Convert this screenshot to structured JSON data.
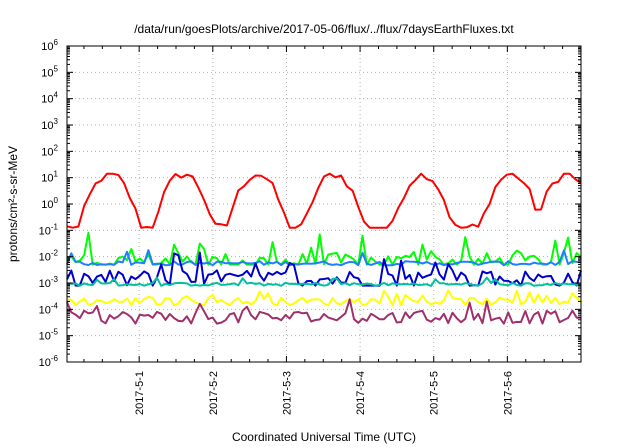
{
  "chart_data": {
    "type": "line",
    "title": "/data/run/goesPlots/archive/2017-05-06/flux/../flux/7daysEarthFluxes.txt",
    "xlabel": "Coordinated Universal Time (UTC)",
    "ylabel": "protons/cm²-s-sr-MeV",
    "yscale": "log",
    "ylim": [
      1e-06,
      1000000.0
    ],
    "xlim": [
      "2017-04-30",
      "2017-05-06T23:59"
    ],
    "grid": true,
    "y_ticks": [
      {
        "base": "10",
        "exp": "-6"
      },
      {
        "base": "10",
        "exp": "-5"
      },
      {
        "base": "10",
        "exp": "-4"
      },
      {
        "base": "10",
        "exp": "-3"
      },
      {
        "base": "10",
        "exp": "-2"
      },
      {
        "base": "10",
        "exp": "-1"
      },
      {
        "base": "10",
        "exp": "0"
      },
      {
        "base": "10",
        "exp": "1"
      },
      {
        "base": "10",
        "exp": "2"
      },
      {
        "base": "10",
        "exp": "3"
      },
      {
        "base": "10",
        "exp": "4"
      },
      {
        "base": "10",
        "exp": "5"
      },
      {
        "base": "10",
        "exp": "6"
      }
    ],
    "x_ticks": [
      {
        "label": "2017-5-1",
        "day": 1
      },
      {
        "label": "2017-5-2",
        "day": 2
      },
      {
        "label": "2017-5-3",
        "day": 3
      },
      {
        "label": "2017-5-4",
        "day": 4
      },
      {
        "label": "2017-5-5",
        "day": 5
      },
      {
        "label": "2017-5-6",
        "day": 6
      }
    ],
    "series": [
      {
        "color": "#ff0000",
        "style": "diurnal",
        "peaks": [
          0.6,
          1.6,
          2.6,
          3.65,
          4.85,
          6.05,
          6.8
        ],
        "lo": -0.9,
        "hi": 1.15
      },
      {
        "color": "#00ff00",
        "style": "noisy",
        "base": -2.2,
        "amp": 0.35,
        "spikes": 1.0,
        "lo": -2.3,
        "hi": -0.9
      },
      {
        "color": "#1e7fff",
        "style": "flat",
        "base": -2.25,
        "amp": 0.08,
        "lo": -2.4,
        "hi": -1.5
      },
      {
        "color": "#0000cc",
        "style": "noisy",
        "base": -2.85,
        "amp": 0.35,
        "spikes": 0.8,
        "lo": -3.1,
        "hi": -1.8
      },
      {
        "color": "#00c0a0",
        "style": "flat",
        "base": -3.05,
        "amp": 0.06,
        "lo": -3.15,
        "hi": -2.7
      },
      {
        "color": "#ffff00",
        "style": "noisy",
        "base": -3.7,
        "amp": 0.15,
        "spikes": 0.35,
        "lo": -3.85,
        "hi": -3.2
      },
      {
        "color": "#a0306a",
        "style": "noisy",
        "base": -4.3,
        "amp": 0.25,
        "spikes": 0.5,
        "lo": -4.6,
        "hi": -3.6
      }
    ]
  }
}
